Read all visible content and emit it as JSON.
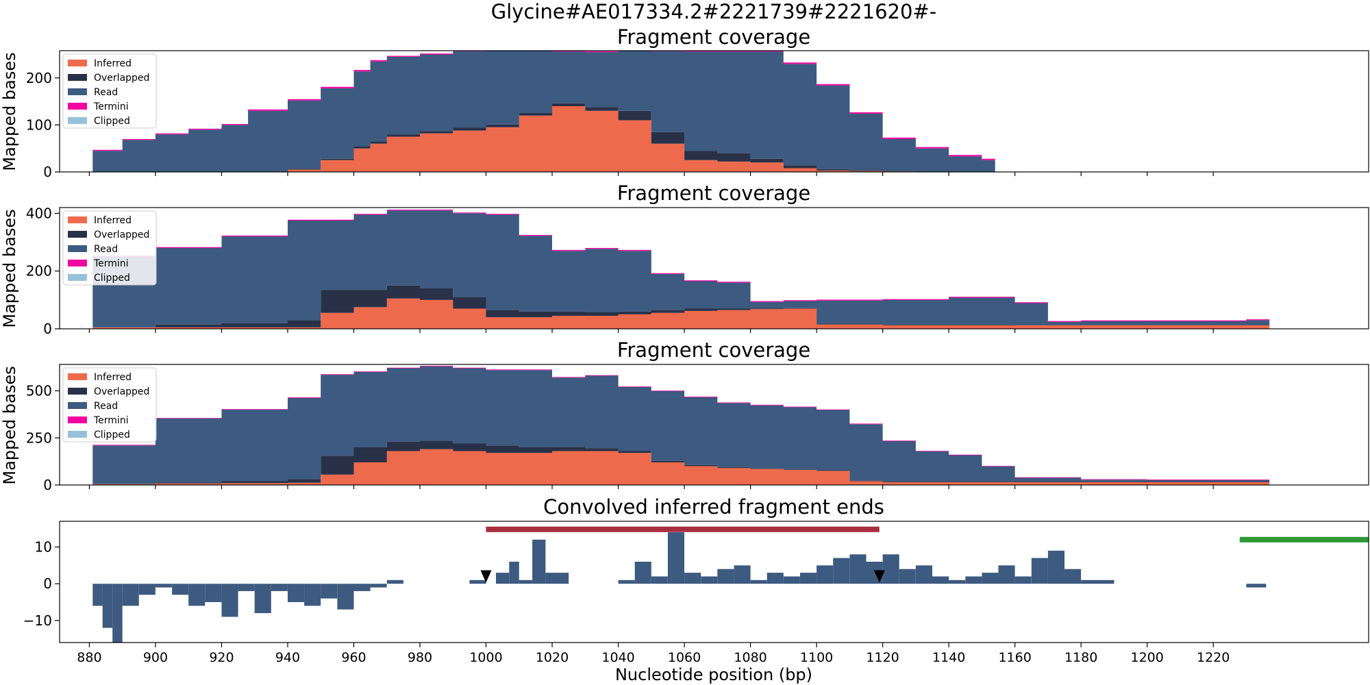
{
  "figure": {
    "suptitle": "Glycine#AE017334.2#2221739#2221620#-"
  },
  "colors": {
    "inferred": "#EE6A4C",
    "overlapped": "#283147",
    "read": "#3D5A80",
    "termini": "#F2059F",
    "clipped": "#98C1D9",
    "feature_red": "#A82E3F",
    "feature_green": "#2E9935",
    "marker": "#000000"
  },
  "legend": {
    "placement": "top-left",
    "entries": [
      "Inferred",
      "Overlapped",
      "Read",
      "Termini",
      "Clipped"
    ]
  },
  "chart_data": [
    {
      "type": "area",
      "stacked": true,
      "title": "Fragment coverage",
      "ylabel": "Mapped bases",
      "xlim": [
        871,
        1267
      ],
      "ylim": [
        0,
        258
      ],
      "yticks": [
        0,
        100,
        200
      ],
      "x": [
        881,
        890,
        900,
        910,
        920,
        928,
        940,
        950,
        960,
        965,
        970,
        980,
        990,
        1000,
        1010,
        1020,
        1030,
        1040,
        1050,
        1060,
        1070,
        1080,
        1090,
        1100,
        1110,
        1120,
        1130,
        1140,
        1150,
        1154
      ],
      "series": [
        {
          "name": "Inferred",
          "values": [
            0,
            0,
            0,
            0,
            0,
            0,
            5,
            25,
            50,
            60,
            75,
            82,
            88,
            95,
            120,
            140,
            130,
            110,
            60,
            25,
            22,
            20,
            8,
            3,
            2,
            1,
            0,
            0,
            0,
            0
          ]
        },
        {
          "name": "Overlapped",
          "values": [
            0,
            0,
            0,
            0,
            0,
            0,
            2,
            3,
            4,
            5,
            5,
            5,
            6,
            6,
            6,
            6,
            8,
            20,
            25,
            20,
            18,
            8,
            6,
            3,
            2,
            1,
            0,
            0,
            0,
            0
          ]
        },
        {
          "name": "Read",
          "values": [
            45,
            68,
            80,
            90,
            100,
            130,
            145,
            150,
            160,
            170,
            165,
            163,
            163,
            164,
            139,
            110,
            117,
            132,
            172,
            211,
            216,
            228,
            216,
            178,
            120,
            68,
            50,
            33,
            25,
            0
          ]
        },
        {
          "name": "Termini",
          "values": [
            2,
            2,
            2,
            2,
            2,
            3,
            3,
            3,
            3,
            3,
            2,
            2,
            2,
            2,
            2,
            2,
            2,
            2,
            2,
            2,
            2,
            3,
            3,
            3,
            3,
            3,
            3,
            3,
            3,
            0
          ]
        },
        {
          "name": "Clipped",
          "values": [
            0,
            0,
            0,
            0,
            0,
            0,
            0,
            0,
            0,
            0,
            0,
            0,
            0,
            0,
            0,
            0,
            0,
            0,
            0,
            0,
            0,
            0,
            0,
            0,
            0,
            0,
            0,
            0,
            0,
            0
          ]
        }
      ]
    },
    {
      "type": "area",
      "stacked": true,
      "title": "Fragment coverage",
      "ylabel": "Mapped bases",
      "xlim": [
        871,
        1267
      ],
      "ylim": [
        0,
        420
      ],
      "yticks": [
        0,
        200,
        400
      ],
      "x": [
        881,
        900,
        920,
        940,
        950,
        960,
        970,
        980,
        990,
        1000,
        1010,
        1020,
        1030,
        1040,
        1050,
        1060,
        1070,
        1080,
        1090,
        1100,
        1120,
        1140,
        1150,
        1160,
        1170,
        1180,
        1200,
        1220,
        1230,
        1237
      ],
      "series": [
        {
          "name": "Inferred",
          "values": [
            5,
            5,
            5,
            5,
            55,
            75,
            105,
            100,
            70,
            40,
            40,
            45,
            45,
            50,
            55,
            62,
            65,
            68,
            70,
            15,
            12,
            12,
            12,
            12,
            12,
            12,
            12,
            12,
            12,
            12
          ]
        },
        {
          "name": "Overlapped",
          "values": [
            0,
            10,
            15,
            25,
            80,
            60,
            45,
            40,
            40,
            25,
            20,
            15,
            12,
            10,
            10,
            8,
            5,
            3,
            2,
            3,
            3,
            3,
            3,
            2,
            2,
            2,
            2,
            2,
            2,
            2
          ]
        },
        {
          "name": "Read",
          "values": [
            245,
            265,
            300,
            345,
            240,
            260,
            260,
            270,
            290,
            330,
            262,
            210,
            220,
            210,
            125,
            95,
            90,
            22,
            24,
            80,
            85,
            93,
            93,
            75,
            10,
            12,
            12,
            12,
            16,
            18
          ]
        },
        {
          "name": "Termini",
          "values": [
            3,
            3,
            3,
            3,
            3,
            3,
            3,
            3,
            3,
            3,
            3,
            3,
            3,
            3,
            3,
            3,
            3,
            3,
            3,
            3,
            3,
            3,
            3,
            3,
            3,
            3,
            3,
            3,
            3,
            3
          ]
        },
        {
          "name": "Clipped",
          "values": [
            0,
            0,
            0,
            0,
            0,
            0,
            0,
            0,
            0,
            0,
            0,
            0,
            0,
            0,
            0,
            0,
            0,
            0,
            0,
            0,
            0,
            0,
            0,
            0,
            0,
            0,
            0,
            0,
            0,
            0
          ]
        }
      ]
    },
    {
      "type": "area",
      "stacked": true,
      "title": "Fragment coverage",
      "ylabel": "Mapped bases",
      "xlim": [
        871,
        1267
      ],
      "ylim": [
        0,
        640
      ],
      "yticks": [
        0,
        250,
        500
      ],
      "x": [
        881,
        900,
        920,
        940,
        950,
        960,
        970,
        980,
        990,
        1000,
        1010,
        1020,
        1030,
        1040,
        1050,
        1060,
        1070,
        1080,
        1090,
        1100,
        1110,
        1120,
        1130,
        1140,
        1150,
        1160,
        1180,
        1200,
        1220,
        1237
      ],
      "series": [
        {
          "name": "Inferred",
          "values": [
            5,
            8,
            10,
            12,
            55,
            120,
            180,
            190,
            180,
            170,
            170,
            180,
            180,
            170,
            120,
            100,
            90,
            85,
            80,
            75,
            20,
            15,
            15,
            15,
            15,
            15,
            15,
            15,
            15,
            15
          ]
        },
        {
          "name": "Overlapped",
          "values": [
            0,
            5,
            10,
            20,
            100,
            80,
            50,
            45,
            40,
            40,
            30,
            20,
            15,
            10,
            8,
            6,
            5,
            3,
            3,
            3,
            3,
            3,
            3,
            3,
            3,
            3,
            3,
            3,
            3,
            3
          ]
        },
        {
          "name": "Read",
          "values": [
            205,
            340,
            380,
            430,
            430,
            400,
            390,
            395,
            400,
            400,
            410,
            370,
            385,
            340,
            370,
            360,
            340,
            335,
            330,
            320,
            300,
            215,
            160,
            140,
            80,
            20,
            10,
            8,
            8,
            12
          ]
        },
        {
          "name": "Termini",
          "values": [
            3,
            3,
            3,
            3,
            3,
            3,
            3,
            3,
            3,
            3,
            3,
            3,
            3,
            3,
            3,
            3,
            3,
            3,
            3,
            3,
            3,
            3,
            3,
            3,
            3,
            3,
            3,
            3,
            3,
            3
          ]
        },
        {
          "name": "Clipped",
          "values": [
            0,
            0,
            0,
            0,
            0,
            0,
            0,
            0,
            0,
            0,
            0,
            0,
            0,
            0,
            0,
            0,
            0,
            0,
            0,
            0,
            0,
            0,
            0,
            0,
            0,
            0,
            0,
            0,
            0,
            0
          ]
        }
      ]
    },
    {
      "type": "bar",
      "title": "Convolved inferred fragment ends",
      "xlabel": "Nucleotide position (bp)",
      "xlim": [
        871,
        1267
      ],
      "ylim": [
        -16,
        17
      ],
      "yticks": [
        -10,
        0,
        10
      ],
      "xticks": [
        880,
        900,
        920,
        940,
        960,
        980,
        1000,
        1020,
        1040,
        1060,
        1080,
        1100,
        1120,
        1140,
        1160,
        1180,
        1200,
        1220
      ],
      "x": [
        881,
        884,
        887,
        890,
        895,
        900,
        905,
        910,
        915,
        920,
        925,
        930,
        935,
        940,
        945,
        950,
        955,
        960,
        965,
        970,
        975,
        980,
        985,
        990,
        995,
        1000,
        1003,
        1007,
        1010,
        1014,
        1018,
        1025,
        1030,
        1035,
        1040,
        1045,
        1050,
        1055,
        1060,
        1065,
        1070,
        1075,
        1080,
        1085,
        1090,
        1095,
        1100,
        1105,
        1110,
        1115,
        1120,
        1125,
        1130,
        1135,
        1140,
        1145,
        1150,
        1155,
        1160,
        1165,
        1170,
        1175,
        1180,
        1190,
        1200,
        1210,
        1220,
        1230,
        1236
      ],
      "values": [
        -6,
        -12,
        -16,
        -6,
        -3,
        -1,
        -3,
        -6,
        -5,
        -9,
        -2,
        -8,
        -2,
        -5,
        -6,
        -4,
        -7,
        -2,
        -1,
        1,
        0,
        0,
        0,
        0,
        1,
        0,
        3,
        6,
        1,
        12,
        3,
        0,
        0,
        0,
        1,
        6,
        2,
        14,
        3,
        2,
        4,
        5,
        1,
        3,
        2,
        3,
        5,
        7,
        8,
        6,
        8,
        4,
        5,
        2,
        1,
        2,
        3,
        5,
        2,
        7,
        9,
        4,
        1,
        0,
        0,
        0,
        0,
        -1,
        0
      ],
      "features": [
        {
          "start": 1000,
          "end": 1119,
          "value": 14.8,
          "color": "feature_red"
        },
        {
          "start": 1228,
          "end": 1267,
          "value": 12,
          "color": "feature_green"
        }
      ],
      "markers": [
        {
          "x": 1000,
          "y": 2
        },
        {
          "x": 1119,
          "y": 2
        }
      ]
    }
  ]
}
